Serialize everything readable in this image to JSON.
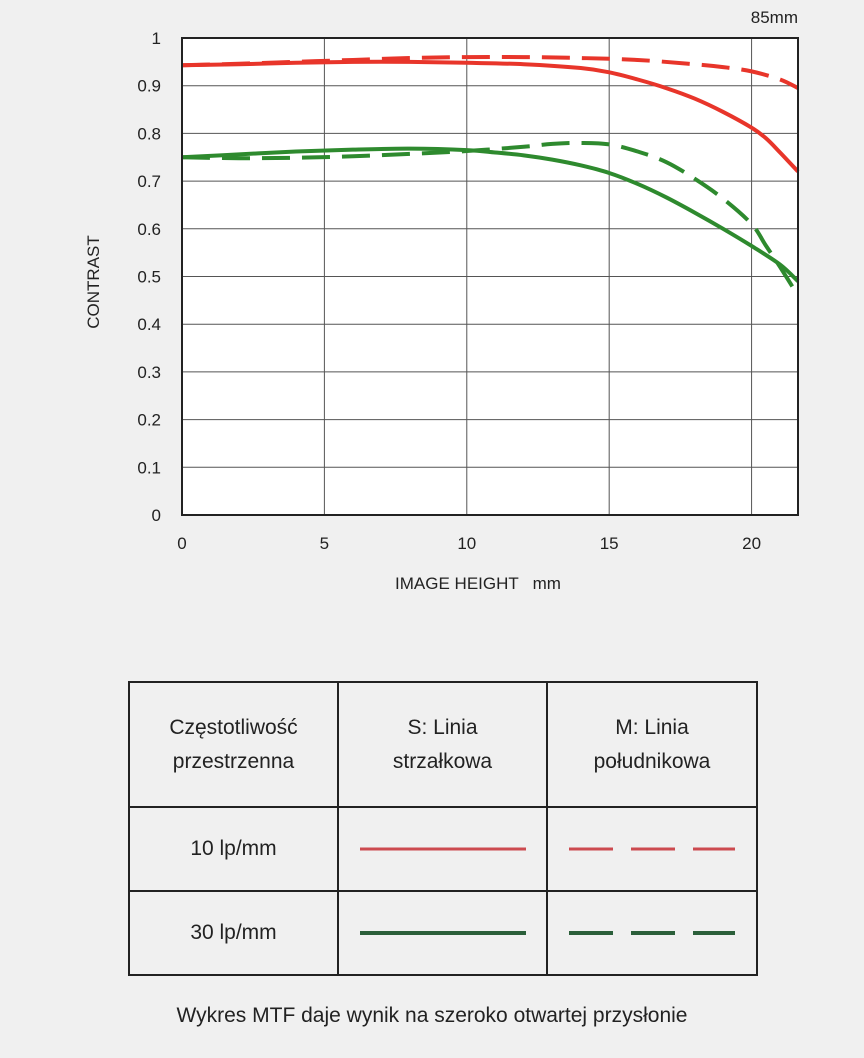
{
  "chart_data": {
    "type": "line",
    "focal_length_label": "85mm",
    "xlabel": "IMAGE HEIGHT   mm",
    "ylabel": "CONTRAST",
    "xlim": [
      0,
      21.63
    ],
    "ylim": [
      0,
      1
    ],
    "xticks": [
      0,
      5,
      10,
      15,
      20
    ],
    "yticks": [
      0,
      0.1,
      0.2,
      0.3,
      0.4,
      0.5,
      0.6,
      0.7,
      0.8,
      0.9,
      1
    ],
    "ytick_labels": [
      "0",
      "0.1",
      "0.2",
      "0.3",
      "0.4",
      "0.5",
      "0.6",
      "0.7",
      "0.8",
      "0.9",
      "1"
    ],
    "xtick_labels": [
      "0",
      "5",
      "10",
      "15",
      "20"
    ],
    "grid": true,
    "series": [
      {
        "frequency": "10 lp/mm",
        "line": "S",
        "style": "solid",
        "color": "#e8352a",
        "x": [
          0,
          2,
          4,
          6,
          8,
          10,
          12,
          14,
          15,
          16,
          17,
          18,
          19,
          20,
          20.5,
          21,
          21.63
        ],
        "y": [
          0.943,
          0.945,
          0.948,
          0.95,
          0.95,
          0.948,
          0.945,
          0.937,
          0.928,
          0.913,
          0.895,
          0.873,
          0.845,
          0.812,
          0.79,
          0.76,
          0.72
        ]
      },
      {
        "frequency": "10 lp/mm",
        "line": "M",
        "style": "dashed",
        "color": "#e8352a",
        "x": [
          0,
          2,
          4,
          6,
          8,
          10,
          12,
          14,
          16,
          18,
          19,
          20,
          21,
          21.63
        ],
        "y": [
          0.943,
          0.946,
          0.95,
          0.954,
          0.958,
          0.96,
          0.96,
          0.958,
          0.954,
          0.945,
          0.939,
          0.93,
          0.913,
          0.895
        ]
      },
      {
        "frequency": "30 lp/mm",
        "line": "S",
        "style": "solid",
        "color": "#2e8a2e",
        "x": [
          0,
          2,
          4,
          6,
          8,
          10,
          11,
          12,
          13,
          14,
          15,
          16,
          17,
          18,
          19,
          20,
          21,
          21.63
        ],
        "y": [
          0.75,
          0.756,
          0.762,
          0.766,
          0.768,
          0.765,
          0.76,
          0.754,
          0.745,
          0.733,
          0.717,
          0.694,
          0.666,
          0.634,
          0.6,
          0.564,
          0.525,
          0.49
        ]
      },
      {
        "frequency": "30 lp/mm",
        "line": "M",
        "style": "dashed",
        "color": "#2e8a2e",
        "x": [
          0,
          2,
          4,
          6,
          8,
          10,
          12,
          13,
          14,
          15,
          16,
          17,
          18,
          19,
          20,
          20.5,
          21,
          21.63
        ],
        "y": [
          0.75,
          0.748,
          0.749,
          0.752,
          0.757,
          0.763,
          0.772,
          0.778,
          0.78,
          0.777,
          0.762,
          0.74,
          0.705,
          0.663,
          0.61,
          0.565,
          0.52,
          0.46
        ]
      }
    ]
  },
  "legend": {
    "header": {
      "col1_line1": "Częstotliwość",
      "col1_line2": "przestrzenna",
      "col2_line1": "S: Linia",
      "col2_line2": "strzałkowa",
      "col3_line1": "M: Linia",
      "col3_line2": "południkowa"
    },
    "rows": [
      {
        "label": "10 lp/mm",
        "color": "#cc4a4f"
      },
      {
        "label": "30 lp/mm",
        "color": "#2b5f3a"
      }
    ]
  },
  "caption": "Wykres MTF daje wynik na szeroko otwartej przysłonie"
}
